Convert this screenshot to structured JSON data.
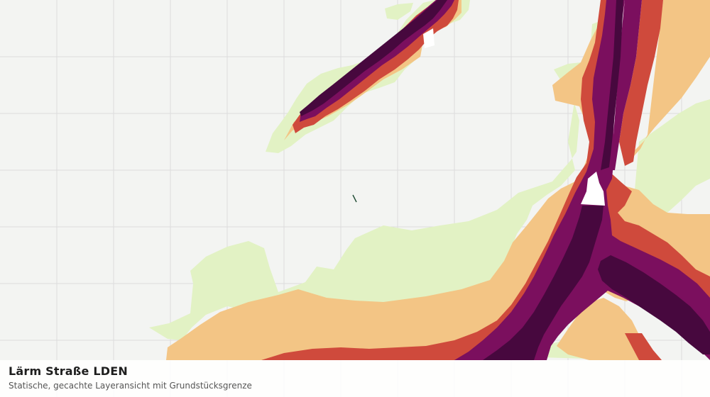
{
  "layer": {
    "title": "Lärm Straße LDEN",
    "subtitle": "Statische, gecachte Layeransicht mit Grundstücksgrenze"
  },
  "map": {
    "background_color": "#f3f4f2",
    "grid_color": "#dcdcdc",
    "noise_band_colors": [
      "#e2f2c4",
      "#f3c585",
      "#cf4a3c",
      "#7b0f5e",
      "#47083e"
    ],
    "grundstuecksgrenze_color": "#1e4a32"
  }
}
